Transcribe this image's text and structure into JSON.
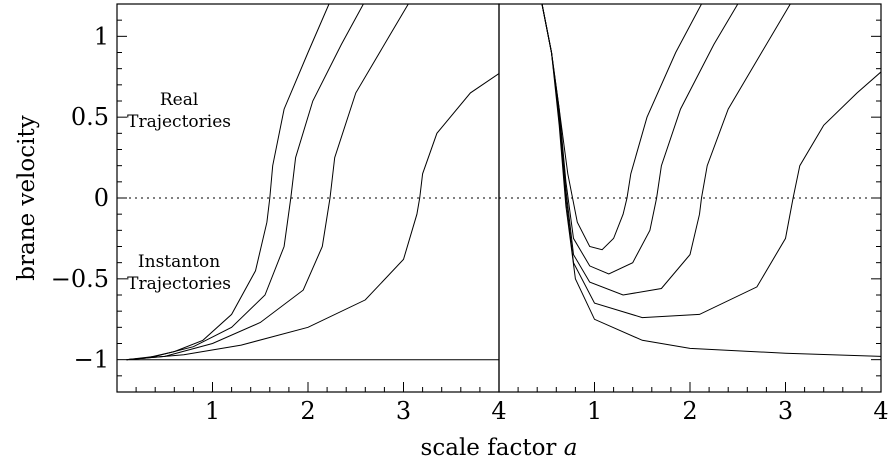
{
  "chart_data": [
    {
      "type": "line",
      "panel": "left",
      "xlim": [
        0,
        4
      ],
      "ylim": [
        -1.2,
        1.2
      ],
      "x_ticks": [
        1,
        2,
        3,
        4
      ],
      "y_ticks": [
        -1,
        -0.5,
        0,
        0.5,
        1
      ],
      "y_tick_labels": [
        "−1",
        "−0.5",
        "0",
        "0.5",
        "1"
      ],
      "reference_line_y": 0,
      "annotations": [
        {
          "lines": [
            "Real",
            "Trajectories"
          ],
          "x": 0.65,
          "y": 0.5
        },
        {
          "lines": [
            "Instanton",
            "Trajectories"
          ],
          "x": 0.65,
          "y": -0.5
        }
      ],
      "series": [
        {
          "points": [
            [
              0.1,
              -1
            ],
            [
              0.3,
              -0.99
            ],
            [
              0.6,
              -0.95
            ],
            [
              0.9,
              -0.88
            ],
            [
              1.2,
              -0.72
            ],
            [
              1.45,
              -0.45
            ],
            [
              1.57,
              -0.15
            ],
            [
              1.6,
              0
            ],
            [
              1.63,
              0.2
            ],
            [
              1.75,
              0.55
            ],
            [
              2.0,
              0.9
            ],
            [
              2.22,
              1.2
            ]
          ]
        },
        {
          "points": [
            [
              0.1,
              -1
            ],
            [
              0.4,
              -0.98
            ],
            [
              0.8,
              -0.92
            ],
            [
              1.2,
              -0.8
            ],
            [
              1.55,
              -0.6
            ],
            [
              1.75,
              -0.3
            ],
            [
              1.82,
              0
            ],
            [
              1.87,
              0.25
            ],
            [
              2.05,
              0.6
            ],
            [
              2.35,
              0.95
            ],
            [
              2.58,
              1.2
            ]
          ]
        },
        {
          "points": [
            [
              0.1,
              -1
            ],
            [
              0.5,
              -0.98
            ],
            [
              1.0,
              -0.9
            ],
            [
              1.5,
              -0.77
            ],
            [
              1.95,
              -0.57
            ],
            [
              2.15,
              -0.3
            ],
            [
              2.23,
              0
            ],
            [
              2.28,
              0.25
            ],
            [
              2.5,
              0.65
            ],
            [
              2.85,
              1.0
            ],
            [
              3.05,
              1.2
            ]
          ]
        },
        {
          "points": [
            [
              0.1,
              -1
            ],
            [
              0.7,
              -0.97
            ],
            [
              1.3,
              -0.91
            ],
            [
              2.0,
              -0.8
            ],
            [
              2.6,
              -0.63
            ],
            [
              3.0,
              -0.38
            ],
            [
              3.14,
              -0.1
            ],
            [
              3.17,
              0
            ],
            [
              3.2,
              0.15
            ],
            [
              3.35,
              0.4
            ],
            [
              3.7,
              0.65
            ],
            [
              4.0,
              0.77
            ]
          ]
        },
        {
          "points": [
            [
              0.1,
              -1
            ],
            [
              4.0,
              -1
            ]
          ]
        }
      ]
    },
    {
      "type": "line",
      "panel": "right",
      "xlim": [
        0,
        4
      ],
      "ylim": [
        -1.2,
        1.2
      ],
      "x_ticks": [
        1,
        2,
        3,
        4
      ],
      "reference_line_y": 0,
      "series": [
        {
          "points": [
            [
              0.45,
              1.2
            ],
            [
              0.55,
              0.9
            ],
            [
              0.63,
              0.55
            ],
            [
              0.72,
              0.15
            ],
            [
              0.82,
              -0.15
            ],
            [
              0.95,
              -0.3
            ],
            [
              1.08,
              -0.32
            ],
            [
              1.2,
              -0.25
            ],
            [
              1.3,
              -0.1
            ],
            [
              1.34,
              0
            ],
            [
              1.38,
              0.15
            ],
            [
              1.55,
              0.5
            ],
            [
              1.85,
              0.9
            ],
            [
              2.12,
              1.2
            ]
          ]
        },
        {
          "points": [
            [
              0.45,
              1.2
            ],
            [
              0.55,
              0.9
            ],
            [
              0.63,
              0.55
            ],
            [
              0.7,
              0.1
            ],
            [
              0.78,
              -0.25
            ],
            [
              0.95,
              -0.42
            ],
            [
              1.15,
              -0.47
            ],
            [
              1.4,
              -0.4
            ],
            [
              1.58,
              -0.2
            ],
            [
              1.65,
              0
            ],
            [
              1.7,
              0.2
            ],
            [
              1.9,
              0.55
            ],
            [
              2.25,
              0.95
            ],
            [
              2.5,
              1.2
            ]
          ]
        },
        {
          "points": [
            [
              0.45,
              1.2
            ],
            [
              0.55,
              0.9
            ],
            [
              0.63,
              0.5
            ],
            [
              0.7,
              0.05
            ],
            [
              0.78,
              -0.35
            ],
            [
              0.95,
              -0.52
            ],
            [
              1.3,
              -0.6
            ],
            [
              1.7,
              -0.56
            ],
            [
              2.0,
              -0.35
            ],
            [
              2.1,
              -0.1
            ],
            [
              2.12,
              0
            ],
            [
              2.18,
              0.2
            ],
            [
              2.4,
              0.55
            ],
            [
              2.75,
              0.9
            ],
            [
              3.05,
              1.2
            ]
          ]
        },
        {
          "points": [
            [
              0.45,
              1.2
            ],
            [
              0.55,
              0.9
            ],
            [
              0.63,
              0.5
            ],
            [
              0.7,
              0.0
            ],
            [
              0.78,
              -0.4
            ],
            [
              1.0,
              -0.65
            ],
            [
              1.5,
              -0.74
            ],
            [
              2.1,
              -0.72
            ],
            [
              2.7,
              -0.55
            ],
            [
              3.0,
              -0.25
            ],
            [
              3.08,
              0
            ],
            [
              3.15,
              0.2
            ],
            [
              3.4,
              0.45
            ],
            [
              3.75,
              0.65
            ],
            [
              4.0,
              0.78
            ]
          ]
        },
        {
          "points": [
            [
              0.45,
              1.2
            ],
            [
              0.55,
              0.9
            ],
            [
              0.63,
              0.45
            ],
            [
              0.7,
              -0.05
            ],
            [
              0.8,
              -0.5
            ],
            [
              1.0,
              -0.75
            ],
            [
              1.5,
              -0.88
            ],
            [
              2.0,
              -0.93
            ],
            [
              3.0,
              -0.96
            ],
            [
              4.0,
              -0.98
            ]
          ]
        }
      ]
    }
  ],
  "axis_titles": {
    "y": "brane velocity",
    "x_prefix": "scale factor ",
    "x_var": "a"
  }
}
